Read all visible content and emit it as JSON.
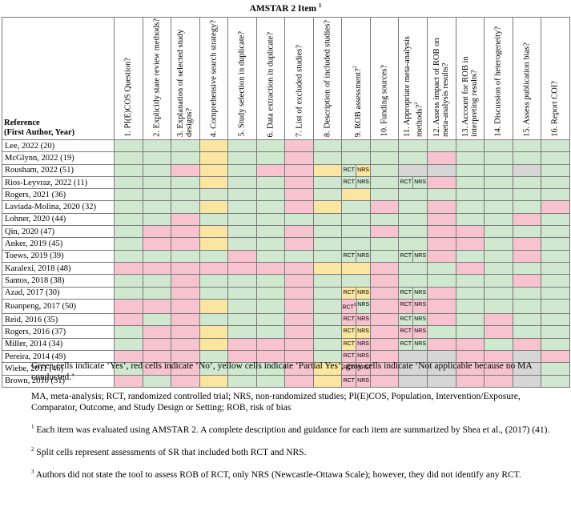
{
  "title": "AMSTAR 2 Item",
  "title_sup": "1",
  "reference_header": {
    "line1": "Reference",
    "line2": "(First Author, Year)"
  },
  "columns": [
    {
      "label": "1. PI(E)COS Question?",
      "sup": ""
    },
    {
      "label": "2. Explicitly state review methods?",
      "sup": ""
    },
    {
      "label": "3. Explanation of selected study designs?",
      "sup": ""
    },
    {
      "label": "4. Comprehensive search strategy?",
      "sup": ""
    },
    {
      "label": "5. Study selection in duplicate?",
      "sup": ""
    },
    {
      "label": "6. Data extraction in duplicate?",
      "sup": ""
    },
    {
      "label": "7. List of excluded studies?",
      "sup": ""
    },
    {
      "label": "8. Description of included studies?",
      "sup": ""
    },
    {
      "label": "9. ROB assessment?",
      "sup": "2"
    },
    {
      "label": "10. Funding sources?",
      "sup": ""
    },
    {
      "label": "11. Appropriate meta-analysis methods?",
      "sup": "2"
    },
    {
      "label": "12. Assess impact of ROB on meta-analysis results?",
      "sup": ""
    },
    {
      "label": "13. Account for ROB in interpreting results?",
      "sup": ""
    },
    {
      "label": "14. Discussion of heterogeneity?",
      "sup": ""
    },
    {
      "label": "15. Assess publication bias?",
      "sup": ""
    },
    {
      "label": "16. Report COI?",
      "sup": ""
    }
  ],
  "legend_colors": {
    "yes": "#cfe8cf",
    "no": "#f7c3cf",
    "partial": "#fae6a0",
    "na": "#d6d6d6"
  },
  "rows": [
    {
      "ref": "Lee, 2022 (20)",
      "cells": [
        {
          "c": "Y"
        },
        {
          "c": "Y"
        },
        {
          "c": "Y"
        },
        {
          "c": "P"
        },
        {
          "c": "Y"
        },
        {
          "c": "Y"
        },
        {
          "c": "N"
        },
        {
          "c": "Y"
        },
        {
          "c": "Y"
        },
        {
          "c": "Y"
        },
        {
          "c": "Y"
        },
        {
          "c": "Y"
        },
        {
          "c": "Y"
        },
        {
          "c": "Y"
        },
        {
          "c": "Y"
        },
        {
          "c": "Y"
        }
      ]
    },
    {
      "ref": "McGlynn, 2022 (19)",
      "cells": [
        {
          "c": "Y"
        },
        {
          "c": "Y"
        },
        {
          "c": "Y"
        },
        {
          "c": "P"
        },
        {
          "c": "Y"
        },
        {
          "c": "Y"
        },
        {
          "c": "N"
        },
        {
          "c": "Y"
        },
        {
          "c": "Y"
        },
        {
          "c": "Y"
        },
        {
          "c": "Y"
        },
        {
          "c": "N"
        },
        {
          "c": "Y"
        },
        {
          "c": "Y"
        },
        {
          "c": "Y"
        },
        {
          "c": "Y"
        }
      ]
    },
    {
      "ref": "Rousham, 2022 (51)",
      "cells": [
        {
          "c": "Y"
        },
        {
          "c": "Y"
        },
        {
          "c": "N"
        },
        {
          "c": "P"
        },
        {
          "c": "Y"
        },
        {
          "c": "N"
        },
        {
          "c": "N"
        },
        {
          "c": "P"
        },
        {
          "split": [
            {
              "t": "RCT",
              "c": "Y"
            },
            {
              "t": "NRS",
              "c": "P"
            }
          ]
        },
        {
          "c": "Y"
        },
        {
          "c": "G"
        },
        {
          "c": "G"
        },
        {
          "c": "Y"
        },
        {
          "c": "Y"
        },
        {
          "c": "G"
        },
        {
          "c": "Y"
        }
      ]
    },
    {
      "ref": "Rios-Leyvraz, 2022 (11)",
      "cells": [
        {
          "c": "Y"
        },
        {
          "c": "Y"
        },
        {
          "c": "Y"
        },
        {
          "c": "P"
        },
        {
          "c": "Y"
        },
        {
          "c": "Y"
        },
        {
          "c": "N"
        },
        {
          "c": "Y"
        },
        {
          "split": [
            {
              "t": "RCT",
              "c": "Y"
            },
            {
              "t": "NRS",
              "c": "Y"
            }
          ]
        },
        {
          "c": "Y"
        },
        {
          "split": [
            {
              "t": "RCT",
              "c": "Y"
            },
            {
              "t": "NRS",
              "c": "Y"
            }
          ]
        },
        {
          "c": "N"
        },
        {
          "c": "Y"
        },
        {
          "c": "Y"
        },
        {
          "c": "Y"
        },
        {
          "c": "Y"
        }
      ]
    },
    {
      "ref": "Rogers, 2021 (36)",
      "cells": [
        {
          "c": "Y"
        },
        {
          "c": "Y"
        },
        {
          "c": "Y"
        },
        {
          "c": "Y"
        },
        {
          "c": "Y"
        },
        {
          "c": "Y"
        },
        {
          "c": "N"
        },
        {
          "c": "Y"
        },
        {
          "c": "P"
        },
        {
          "c": "Y"
        },
        {
          "c": "Y"
        },
        {
          "c": "Y"
        },
        {
          "c": "Y"
        },
        {
          "c": "Y"
        },
        {
          "c": "Y"
        },
        {
          "c": "Y"
        }
      ]
    },
    {
      "ref": "Laviada-Molina, 2020 (32)",
      "cells": [
        {
          "c": "Y"
        },
        {
          "c": "Y"
        },
        {
          "c": "Y"
        },
        {
          "c": "P"
        },
        {
          "c": "Y"
        },
        {
          "c": "Y"
        },
        {
          "c": "N"
        },
        {
          "c": "P"
        },
        {
          "c": "Y"
        },
        {
          "c": "N"
        },
        {
          "c": "Y"
        },
        {
          "c": "N"
        },
        {
          "c": "Y"
        },
        {
          "c": "Y"
        },
        {
          "c": "Y"
        },
        {
          "c": "N"
        }
      ]
    },
    {
      "ref": "Lohner, 2020 (44)",
      "cells": [
        {
          "c": "Y"
        },
        {
          "c": "Y"
        },
        {
          "c": "N"
        },
        {
          "c": "Y"
        },
        {
          "c": "Y"
        },
        {
          "c": "Y"
        },
        {
          "c": "Y"
        },
        {
          "c": "Y"
        },
        {
          "c": "Y"
        },
        {
          "c": "Y"
        },
        {
          "c": "Y"
        },
        {
          "c": "N"
        },
        {
          "c": "Y"
        },
        {
          "c": "Y"
        },
        {
          "c": "N"
        },
        {
          "c": "Y"
        }
      ]
    },
    {
      "ref": "Qin, 2020 (47)",
      "cells": [
        {
          "c": "Y"
        },
        {
          "c": "N"
        },
        {
          "c": "N"
        },
        {
          "c": "P"
        },
        {
          "c": "Y"
        },
        {
          "c": "Y"
        },
        {
          "c": "N"
        },
        {
          "c": "Y"
        },
        {
          "c": "Y"
        },
        {
          "c": "N"
        },
        {
          "c": "Y"
        },
        {
          "c": "N"
        },
        {
          "c": "N"
        },
        {
          "c": "Y"
        },
        {
          "c": "Y"
        },
        {
          "c": "Y"
        }
      ]
    },
    {
      "ref": "Anker, 2019 (45)",
      "cells": [
        {
          "c": "Y"
        },
        {
          "c": "N"
        },
        {
          "c": "N"
        },
        {
          "c": "P"
        },
        {
          "c": "Y"
        },
        {
          "c": "Y"
        },
        {
          "c": "N"
        },
        {
          "c": "Y"
        },
        {
          "c": "Y"
        },
        {
          "c": "Y"
        },
        {
          "c": "Y"
        },
        {
          "c": "N"
        },
        {
          "c": "N"
        },
        {
          "c": "Y"
        },
        {
          "c": "N"
        },
        {
          "c": "Y"
        }
      ]
    },
    {
      "ref": "Toews, 2019 (39)",
      "cells": [
        {
          "c": "Y"
        },
        {
          "c": "Y"
        },
        {
          "c": "Y"
        },
        {
          "c": "Y"
        },
        {
          "c": "N"
        },
        {
          "c": "Y"
        },
        {
          "c": "Y"
        },
        {
          "c": "Y"
        },
        {
          "split": [
            {
              "t": "RCT",
              "c": "Y"
            },
            {
              "t": "NRS",
              "c": "Y"
            }
          ]
        },
        {
          "c": "Y"
        },
        {
          "split": [
            {
              "t": "RCT",
              "c": "Y"
            },
            {
              "t": "NRS",
              "c": "Y"
            }
          ]
        },
        {
          "c": "N"
        },
        {
          "c": "Y"
        },
        {
          "c": "Y"
        },
        {
          "c": "N"
        },
        {
          "c": "Y"
        }
      ]
    },
    {
      "ref": "Karalexi, 2018 (48)",
      "cells": [
        {
          "c": "N"
        },
        {
          "c": "N"
        },
        {
          "c": "N"
        },
        {
          "c": "N"
        },
        {
          "c": "N"
        },
        {
          "c": "N"
        },
        {
          "c": "N"
        },
        {
          "c": "P"
        },
        {
          "c": "P"
        },
        {
          "c": "N"
        },
        {
          "c": "Y"
        },
        {
          "c": "Y"
        },
        {
          "c": "N"
        },
        {
          "c": "Y"
        },
        {
          "c": "Y"
        },
        {
          "c": "Y"
        }
      ]
    },
    {
      "ref": "Santos, 2018 (38)",
      "cells": [
        {
          "c": "Y"
        },
        {
          "c": "Y"
        },
        {
          "c": "N"
        },
        {
          "c": "Y"
        },
        {
          "c": "Y"
        },
        {
          "c": "Y"
        },
        {
          "c": "N"
        },
        {
          "c": "Y"
        },
        {
          "c": "Y"
        },
        {
          "c": "N"
        },
        {
          "c": "Y"
        },
        {
          "c": "Y"
        },
        {
          "c": "Y"
        },
        {
          "c": "Y"
        },
        {
          "c": "N"
        },
        {
          "c": "Y"
        }
      ]
    },
    {
      "ref": "Azad, 2017 (30)",
      "cells": [
        {
          "c": "Y"
        },
        {
          "c": "Y"
        },
        {
          "c": "N"
        },
        {
          "c": "Y"
        },
        {
          "c": "Y"
        },
        {
          "c": "Y"
        },
        {
          "c": "N"
        },
        {
          "c": "Y"
        },
        {
          "split": [
            {
              "t": "RCT",
              "c": "P"
            },
            {
              "t": "NRS",
              "c": "P"
            }
          ]
        },
        {
          "c": "N"
        },
        {
          "split": [
            {
              "t": "RCT",
              "c": "Y"
            },
            {
              "t": "NRS",
              "c": "Y"
            }
          ]
        },
        {
          "c": "N"
        },
        {
          "c": "Y"
        },
        {
          "c": "Y"
        },
        {
          "c": "Y"
        },
        {
          "c": "Y"
        }
      ]
    },
    {
      "ref": "Ruanpeng, 2017 (50)",
      "cells": [
        {
          "c": "N"
        },
        {
          "c": "N"
        },
        {
          "c": "N"
        },
        {
          "c": "P"
        },
        {
          "c": "Y"
        },
        {
          "c": "Y"
        },
        {
          "c": "N"
        },
        {
          "c": "Y"
        },
        {
          "split": [
            {
              "t": "RCT",
              "sup": "3",
              "c": "N"
            },
            {
              "t": "NRS",
              "c": "Y"
            }
          ]
        },
        {
          "c": "N"
        },
        {
          "split": [
            {
              "t": "RCT",
              "c": "N"
            },
            {
              "t": "NRS",
              "c": "N"
            }
          ]
        },
        {
          "c": "N"
        },
        {
          "c": "Y"
        },
        {
          "c": "Y"
        },
        {
          "c": "Y"
        },
        {
          "c": "Y"
        }
      ]
    },
    {
      "ref": "Reid, 2016 (35)",
      "cells": [
        {
          "c": "N"
        },
        {
          "c": "Y"
        },
        {
          "c": "N"
        },
        {
          "c": "Y"
        },
        {
          "c": "Y"
        },
        {
          "c": "Y"
        },
        {
          "c": "N"
        },
        {
          "c": "Y"
        },
        {
          "split": [
            {
              "t": "RCT",
              "c": "N"
            },
            {
              "t": "NRS",
              "c": "N"
            }
          ]
        },
        {
          "c": "N"
        },
        {
          "split": [
            {
              "t": "RCT",
              "c": "Y"
            },
            {
              "t": "NRS",
              "c": "Y"
            }
          ]
        },
        {
          "c": "N"
        },
        {
          "c": "Y"
        },
        {
          "c": "N"
        },
        {
          "c": "Y"
        },
        {
          "c": "Y"
        }
      ]
    },
    {
      "ref": "Rogers, 2016 (37)",
      "cells": [
        {
          "c": "Y"
        },
        {
          "c": "N"
        },
        {
          "c": "N"
        },
        {
          "c": "P"
        },
        {
          "c": "Y"
        },
        {
          "c": "Y"
        },
        {
          "c": "N"
        },
        {
          "c": "Y"
        },
        {
          "split": [
            {
              "t": "RCT",
              "c": "P"
            },
            {
              "t": "NRS",
              "c": "P"
            }
          ]
        },
        {
          "c": "N"
        },
        {
          "split": [
            {
              "t": "RCT",
              "c": "N"
            },
            {
              "t": "NRS",
              "c": "N"
            }
          ]
        },
        {
          "c": "Y"
        },
        {
          "c": "Y"
        },
        {
          "c": "N"
        },
        {
          "c": "Y"
        },
        {
          "c": "Y"
        }
      ]
    },
    {
      "ref": "Miller, 2014 (34)",
      "cells": [
        {
          "c": "Y"
        },
        {
          "c": "N"
        },
        {
          "c": "N"
        },
        {
          "c": "P"
        },
        {
          "c": "N"
        },
        {
          "c": "N"
        },
        {
          "c": "N"
        },
        {
          "c": "Y"
        },
        {
          "split": [
            {
              "t": "RCT",
              "c": "P"
            },
            {
              "t": "NRS",
              "c": "N"
            }
          ]
        },
        {
          "c": "N"
        },
        {
          "split": [
            {
              "t": "RCT",
              "c": "Y"
            },
            {
              "t": "NRS",
              "c": "Y"
            }
          ]
        },
        {
          "c": "N"
        },
        {
          "c": "N"
        },
        {
          "c": "Y"
        },
        {
          "c": "N"
        },
        {
          "c": "Y"
        }
      ]
    },
    {
      "ref": "Pereira, 2014 (49)",
      "cells": [
        {
          "c": "N"
        },
        {
          "c": "N"
        },
        {
          "c": "N"
        },
        {
          "c": "Y"
        },
        {
          "c": "N"
        },
        {
          "c": "N"
        },
        {
          "c": "N"
        },
        {
          "c": "Y"
        },
        {
          "split": [
            {
              "t": "RCT",
              "c": "N"
            },
            {
              "t": "NRS",
              "c": "N"
            }
          ]
        },
        {
          "c": "N"
        },
        {
          "c": "G"
        },
        {
          "c": "G"
        },
        {
          "c": "N"
        },
        {
          "c": "N"
        },
        {
          "c": "G"
        },
        {
          "c": "N"
        }
      ]
    },
    {
      "ref": "Wiebe, 2011 (46)",
      "cells": [
        {
          "c": "Y"
        },
        {
          "c": "N"
        },
        {
          "c": "N"
        },
        {
          "c": "Y"
        },
        {
          "c": "Y"
        },
        {
          "c": "Y"
        },
        {
          "c": "N"
        },
        {
          "c": "P"
        },
        {
          "split": [
            {
              "t": "RCT",
              "c": "N"
            },
            {
              "t": "NRS",
              "c": "N"
            }
          ]
        },
        {
          "c": "N"
        },
        {
          "c": "G"
        },
        {
          "c": "G"
        },
        {
          "c": "N"
        },
        {
          "c": "N"
        },
        {
          "c": "G"
        },
        {
          "c": "Y"
        }
      ]
    },
    {
      "ref": "Brown, 2010 (31)",
      "cells": [
        {
          "c": "N"
        },
        {
          "c": "Y"
        },
        {
          "c": "N"
        },
        {
          "c": "P"
        },
        {
          "c": "Y"
        },
        {
          "c": "Y"
        },
        {
          "c": "N"
        },
        {
          "c": "P"
        },
        {
          "split": [
            {
              "t": "RCT",
              "c": "N"
            },
            {
              "t": "NRS",
              "c": "N"
            }
          ]
        },
        {
          "c": "N"
        },
        {
          "c": "G"
        },
        {
          "c": "G"
        },
        {
          "c": "N"
        },
        {
          "c": "N"
        },
        {
          "c": "G"
        },
        {
          "c": "Y"
        }
      ]
    }
  ],
  "notes": {
    "legend": "Green cells indicate ‘Yes’, red cells indicate ‘No’, yellow cells indicate ‘Partial Yes’; gray cells indicate ‘Not applicable because no MA conducted.’",
    "abbreviations": "MA, meta-analysis; RCT, randomized controlled trial; NRS, non-randomized studies; PI(E)COS, Population, Intervention/Exposure, Comparator, Outcome, and Study Design or Setting; ROB, risk of bias",
    "footnote1_mark": "1",
    "footnote1": " Each item was evaluated using AMSTAR 2. A complete description and guidance for each item are summarized by Shea et al., (2017) (41).",
    "footnote2_mark": "2",
    "footnote2": " Split cells represent assessments of SR that included both RCT and NRS.",
    "footnote3_mark": "3",
    "footnote3": " Authors did not state the tool to assess ROB of RCT, only NRS (Newcastle-Ottawa Scale); however, they did not identify any RCT."
  }
}
